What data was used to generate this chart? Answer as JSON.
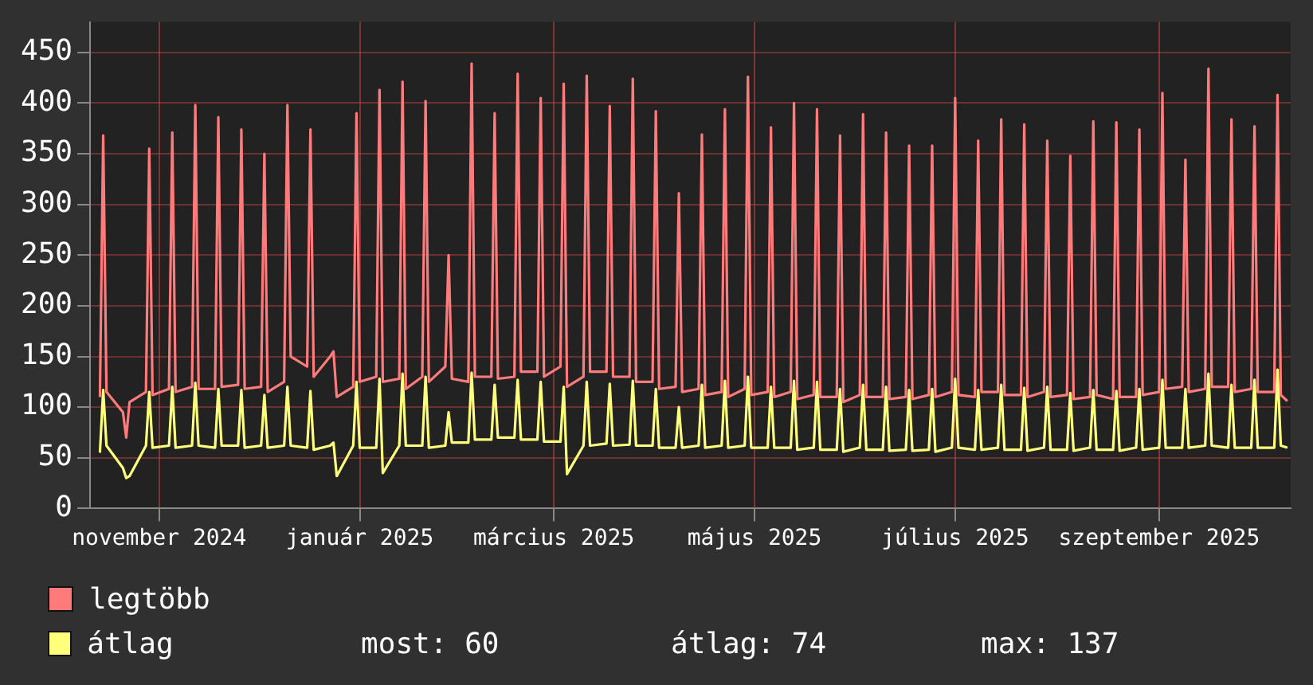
{
  "chart_data": {
    "type": "line",
    "x": [
      "2024-10-14",
      "2024-10-15",
      "2024-10-16",
      "2024-10-21",
      "2024-10-22",
      "2024-10-23",
      "2024-10-28",
      "2024-10-29",
      "2024-10-30",
      "2024-11-04",
      "2024-11-05",
      "2024-11-06",
      "2024-11-11",
      "2024-11-12",
      "2024-11-13",
      "2024-11-18",
      "2024-11-19",
      "2024-11-20",
      "2024-11-25",
      "2024-11-26",
      "2024-11-27",
      "2024-12-02",
      "2024-12-03",
      "2024-12-04",
      "2024-12-09",
      "2024-12-10",
      "2024-12-11",
      "2024-12-16",
      "2024-12-17",
      "2024-12-18",
      "2024-12-23",
      "2024-12-24",
      "2024-12-25",
      "2024-12-30",
      "2024-12-31",
      "2025-01-01",
      "2025-01-06",
      "2025-01-07",
      "2025-01-08",
      "2025-01-13",
      "2025-01-14",
      "2025-01-15",
      "2025-01-20",
      "2025-01-21",
      "2025-01-22",
      "2025-01-27",
      "2025-01-28",
      "2025-01-29",
      "2025-02-03",
      "2025-02-04",
      "2025-02-05",
      "2025-02-10",
      "2025-02-11",
      "2025-02-12",
      "2025-02-17",
      "2025-02-18",
      "2025-02-19",
      "2025-02-24",
      "2025-02-25",
      "2025-02-26",
      "2025-03-03",
      "2025-03-04",
      "2025-03-05",
      "2025-03-10",
      "2025-03-11",
      "2025-03-12",
      "2025-03-17",
      "2025-03-18",
      "2025-03-19",
      "2025-03-24",
      "2025-03-25",
      "2025-03-26",
      "2025-03-31",
      "2025-04-01",
      "2025-04-02",
      "2025-04-07",
      "2025-04-08",
      "2025-04-09",
      "2025-04-14",
      "2025-04-15",
      "2025-04-16",
      "2025-04-21",
      "2025-04-22",
      "2025-04-23",
      "2025-04-28",
      "2025-04-29",
      "2025-04-30",
      "2025-05-05",
      "2025-05-06",
      "2025-05-07",
      "2025-05-12",
      "2025-05-13",
      "2025-05-14",
      "2025-05-19",
      "2025-05-20",
      "2025-05-21",
      "2025-05-26",
      "2025-05-27",
      "2025-05-28",
      "2025-06-02",
      "2025-06-03",
      "2025-06-04",
      "2025-06-09",
      "2025-06-10",
      "2025-06-11",
      "2025-06-16",
      "2025-06-17",
      "2025-06-18",
      "2025-06-23",
      "2025-06-24",
      "2025-06-25",
      "2025-06-30",
      "2025-07-01",
      "2025-07-02",
      "2025-07-07",
      "2025-07-08",
      "2025-07-09",
      "2025-07-14",
      "2025-07-15",
      "2025-07-16",
      "2025-07-21",
      "2025-07-22",
      "2025-07-23",
      "2025-07-28",
      "2025-07-29",
      "2025-07-30",
      "2025-08-04",
      "2025-08-05",
      "2025-08-06",
      "2025-08-11",
      "2025-08-12",
      "2025-08-13",
      "2025-08-18",
      "2025-08-19",
      "2025-08-20",
      "2025-08-25",
      "2025-08-26",
      "2025-08-27",
      "2025-09-01",
      "2025-09-02",
      "2025-09-03",
      "2025-09-08",
      "2025-09-09",
      "2025-09-10",
      "2025-09-15",
      "2025-09-16",
      "2025-09-17",
      "2025-09-22",
      "2025-09-23",
      "2025-09-24",
      "2025-09-29",
      "2025-09-30",
      "2025-10-01",
      "2025-10-06",
      "2025-10-07",
      "2025-10-08",
      "2025-10-10"
    ],
    "series": [
      {
        "name": "legtöbb",
        "color": "#ff7b7b",
        "values": [
          110,
          368,
          115,
          95,
          70,
          105,
          115,
          355,
          112,
          118,
          371,
          115,
          120,
          398,
          118,
          118,
          386,
          120,
          122,
          374,
          118,
          120,
          350,
          115,
          125,
          398,
          150,
          140,
          374,
          130,
          150,
          155,
          110,
          120,
          390,
          125,
          130,
          413,
          125,
          128,
          421,
          118,
          130,
          402,
          125,
          140,
          250,
          128,
          125,
          439,
          130,
          130,
          390,
          128,
          130,
          429,
          135,
          135,
          405,
          130,
          140,
          419,
          120,
          130,
          427,
          135,
          135,
          397,
          130,
          130,
          424,
          125,
          125,
          392,
          118,
          120,
          311,
          115,
          118,
          369,
          112,
          115,
          394,
          110,
          118,
          426,
          112,
          115,
          376,
          110,
          115,
          400,
          108,
          112,
          394,
          110,
          110,
          368,
          105,
          112,
          389,
          110,
          110,
          371,
          108,
          110,
          358,
          108,
          112,
          358,
          110,
          115,
          405,
          112,
          110,
          363,
          115,
          115,
          384,
          112,
          112,
          379,
          110,
          115,
          363,
          110,
          112,
          348,
          108,
          110,
          382,
          112,
          108,
          381,
          110,
          110,
          374,
          112,
          115,
          410,
          118,
          120,
          344,
          115,
          118,
          434,
          120,
          120,
          384,
          115,
          118,
          377,
          115,
          115,
          408,
          112,
          106
        ]
      },
      {
        "name": "átlag",
        "color": "#ffff7b",
        "values": [
          55,
          117,
          62,
          40,
          30,
          32,
          62,
          115,
          60,
          62,
          120,
          60,
          62,
          124,
          62,
          60,
          118,
          62,
          62,
          117,
          60,
          62,
          112,
          60,
          62,
          120,
          62,
          60,
          116,
          58,
          62,
          65,
          32,
          62,
          125,
          60,
          60,
          128,
          35,
          62,
          133,
          62,
          62,
          130,
          60,
          62,
          95,
          65,
          65,
          134,
          68,
          68,
          122,
          70,
          70,
          127,
          68,
          68,
          125,
          66,
          66,
          120,
          34,
          62,
          125,
          62,
          64,
          123,
          62,
          63,
          126,
          62,
          62,
          118,
          60,
          60,
          100,
          60,
          62,
          122,
          60,
          62,
          126,
          60,
          62,
          130,
          60,
          60,
          120,
          60,
          60,
          126,
          58,
          60,
          125,
          58,
          58,
          118,
          56,
          60,
          122,
          58,
          58,
          120,
          57,
          58,
          117,
          57,
          58,
          118,
          56,
          60,
          128,
          60,
          58,
          117,
          58,
          60,
          122,
          58,
          58,
          119,
          57,
          60,
          120,
          58,
          58,
          114,
          57,
          60,
          117,
          58,
          58,
          116,
          57,
          60,
          118,
          58,
          60,
          127,
          60,
          60,
          118,
          60,
          62,
          133,
          62,
          60,
          122,
          60,
          60,
          127,
          60,
          60,
          137,
          62,
          60
        ]
      }
    ],
    "xlim": [
      "2024-10-11",
      "2025-10-11"
    ],
    "xticks": [
      {
        "value": "2024-11-01",
        "label": "november 2024"
      },
      {
        "value": "2025-01-01",
        "label": "január 2025"
      },
      {
        "value": "2025-03-01",
        "label": "március 2025"
      },
      {
        "value": "2025-05-01",
        "label": "május 2025"
      },
      {
        "value": "2025-07-01",
        "label": "július 2025"
      },
      {
        "value": "2025-09-01",
        "label": "szeptember 2025"
      }
    ],
    "ylim": [
      0,
      480
    ],
    "yticks": [
      0,
      50,
      100,
      150,
      200,
      250,
      300,
      350,
      400,
      450
    ],
    "grid": true,
    "legend": "bottom",
    "marker": "none",
    "line_style": "solid",
    "annotations": [
      "most: 60",
      "átlag: 74",
      "max: 137"
    ]
  }
}
